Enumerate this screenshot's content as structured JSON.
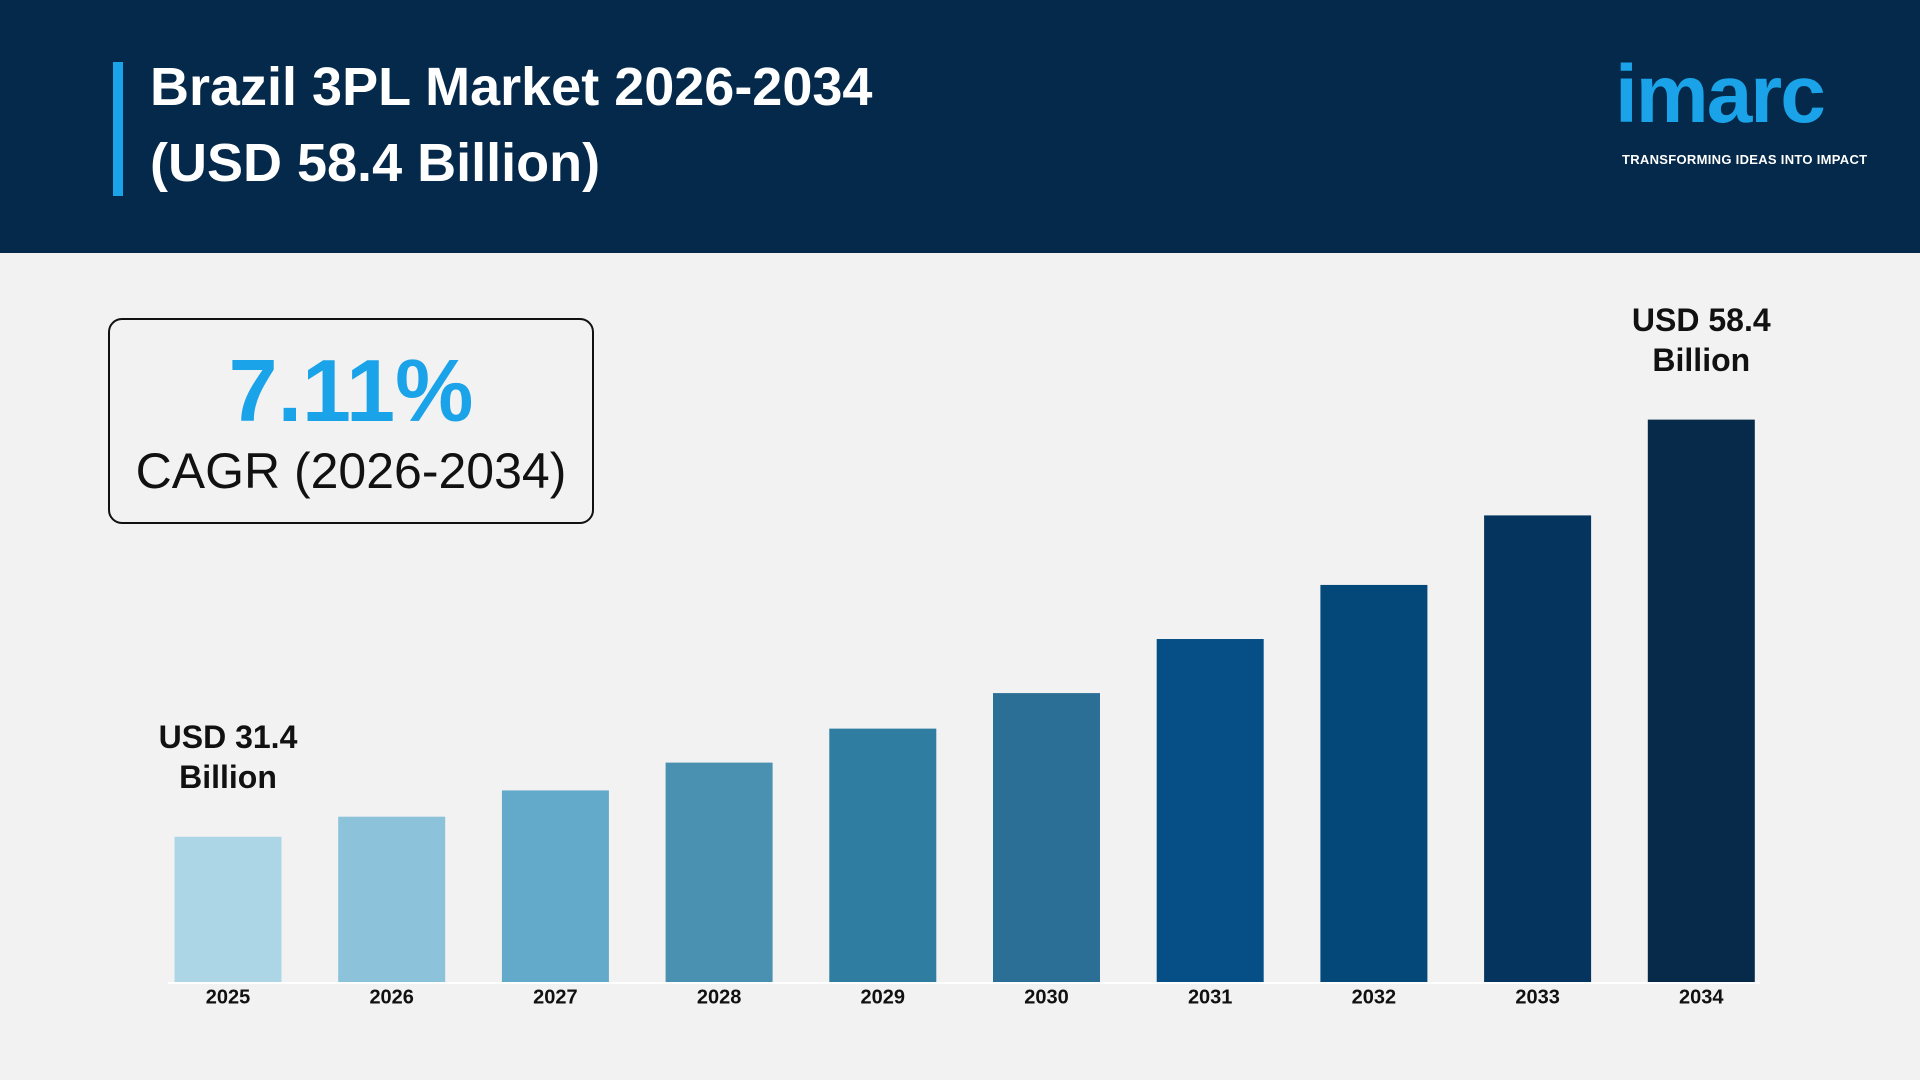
{
  "header": {
    "title_lines": [
      "Brazil 3PL Market 2026-2034",
      "(USD 58.4 Billion)"
    ],
    "logo": "imarc",
    "tagline": "TRANSFORMING IDEAS INTO IMPACT"
  },
  "cagr": {
    "value": "7.11%",
    "label": "CAGR (2026-2034)"
  },
  "chart_data": {
    "type": "bar",
    "categories": [
      "2025",
      "2026",
      "2027",
      "2028",
      "2029",
      "2030",
      "2031",
      "2032",
      "2033",
      "2034"
    ],
    "values": [
      31.4,
      32.7,
      34.4,
      36.2,
      38.4,
      40.7,
      44.2,
      47.7,
      52.2,
      58.4
    ],
    "value_labels": [
      "USD 31.4 Billion",
      null,
      null,
      null,
      null,
      null,
      null,
      null,
      null,
      "USD 58.4 Billion"
    ],
    "colors": [
      "#acd6e6",
      "#8cc3da",
      "#63a9c9",
      "#4a91b1",
      "#2f7ea1",
      "#2c6f96",
      "#064f86",
      "#04487a",
      "#05345e",
      "#072a4b"
    ],
    "ylim": [
      22,
      62
    ]
  }
}
